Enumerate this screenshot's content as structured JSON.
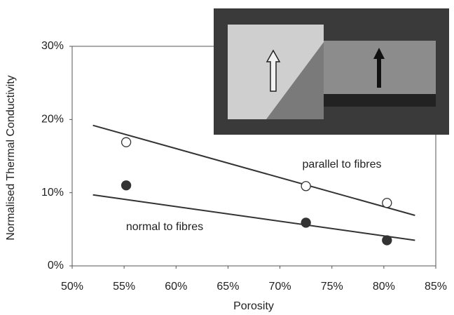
{
  "chart_data": {
    "type": "scatter",
    "x_label": "Porosity",
    "y_label": "Normalised Thermal Conductivity",
    "xlim": [
      50,
      85
    ],
    "xticks": [
      {
        "value": 50,
        "label": "50%"
      },
      {
        "value": 55,
        "label": "55%"
      },
      {
        "value": 60,
        "label": "60%"
      },
      {
        "value": 65,
        "label": "65%"
      },
      {
        "value": 70,
        "label": "70%"
      },
      {
        "value": 75,
        "label": "75%"
      },
      {
        "value": 80,
        "label": "80%"
      },
      {
        "value": 85,
        "label": "85%"
      }
    ],
    "ylim": [
      0,
      30
    ],
    "yticks": [
      {
        "value": 0,
        "label": "0%"
      },
      {
        "value": 10,
        "label": "10%"
      },
      {
        "value": 20,
        "label": "20%"
      },
      {
        "value": 30,
        "label": "30%"
      }
    ],
    "series": [
      {
        "name": "parallel to fibres",
        "marker": "open",
        "color": "#333333",
        "x": [
          55.2,
          72.5,
          80.3
        ],
        "values": [
          16.9,
          10.9,
          8.6
        ],
        "trend": {
          "x": [
            52,
            83
          ],
          "values": [
            19.2,
            6.9
          ]
        }
      },
      {
        "name": "normal to fibres",
        "marker": "filled",
        "color": "#333333",
        "x": [
          55.2,
          72.5,
          80.3
        ],
        "values": [
          11.0,
          5.9,
          3.5
        ],
        "trend": {
          "x": [
            52,
            83
          ],
          "values": [
            9.7,
            3.5
          ]
        }
      }
    ]
  }
}
